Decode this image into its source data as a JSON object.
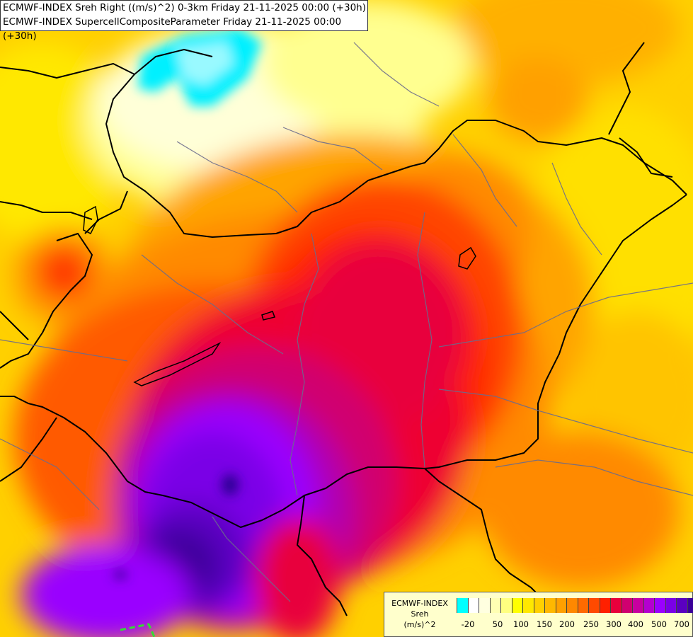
{
  "title": {
    "line1": "ECMWF-INDEX Sreh Right ((m/s)^2) 0-3km Friday 21-11-2025 00:00 (+30h)",
    "line2": "ECMWF-INDEX SupercellCompositeParameter Friday 21-11-2025 00:00 (+30h)"
  },
  "legend": {
    "line1": "ECMWF-INDEX",
    "line2": "Sreh",
    "line3": "(m/s)^2",
    "colors": [
      "#00ffff",
      "#ffffff",
      "#ffffe0",
      "#ffffb3",
      "#ffff80",
      "#ffff00",
      "#ffe800",
      "#ffd000",
      "#ffb800",
      "#ffa000",
      "#ff8800",
      "#ff6a00",
      "#ff4a00",
      "#ff2000",
      "#e8003c",
      "#d00070",
      "#c800a0",
      "#b400d0",
      "#9a00ff",
      "#7a00e6",
      "#5a00c0",
      "#3a0098",
      "#1e0080"
    ],
    "ticks": [
      "-20",
      "50",
      "100",
      "150",
      "200",
      "250",
      "300",
      "400",
      "500",
      "700"
    ]
  },
  "map": {
    "background_color": "#ffd000"
  }
}
